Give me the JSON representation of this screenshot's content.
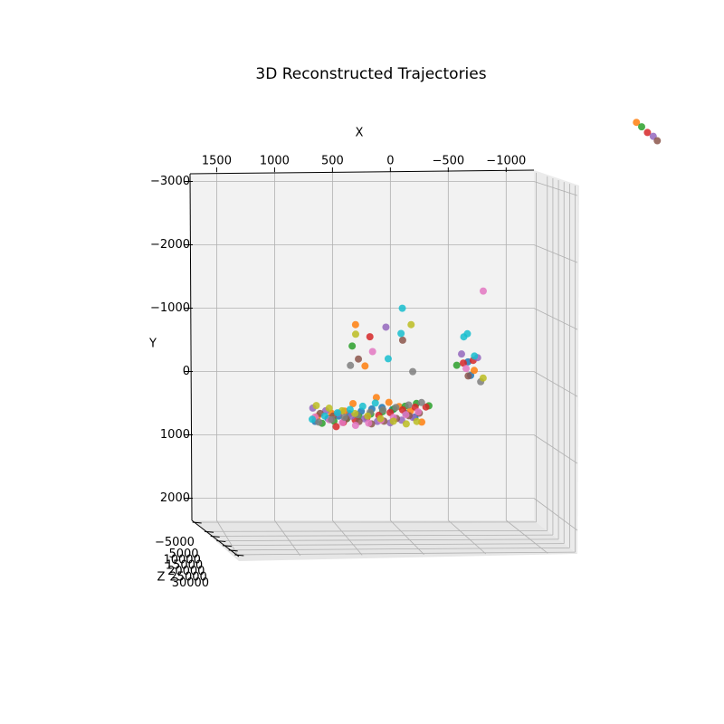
{
  "chart_data": {
    "type": "scatter3d",
    "title": "3D Reconstructed Trajectories",
    "xlabel": "X",
    "ylabel": "Y",
    "zlabel": "Z",
    "xlim": [
      1730,
      -1240
    ],
    "ylim": [
      -3150,
      2350
    ],
    "zlim": [
      -7000,
      32000
    ],
    "xticks": [
      1500,
      1000,
      500,
      0,
      {
        "value": -500,
        "label": "−500"
      },
      {
        "value": -1000,
        "label": "−1000"
      }
    ],
    "yticks": [
      {
        "value": -3000,
        "label": "−3000"
      },
      {
        "value": -2000,
        "label": "−2000"
      },
      {
        "value": -1000,
        "label": "−1000"
      },
      0,
      1000,
      2000
    ],
    "zticks": [
      {
        "value": -5000,
        "label": "−5000"
      },
      5000,
      10000,
      15000,
      20000,
      25000,
      30000
    ],
    "grid": true,
    "series": [
      {
        "color": "#1f77b4",
        "x": [
          720,
          610,
          520,
          430,
          330,
          240,
          150,
          60,
          -60,
          -140,
          -600,
          -620
        ],
        "y": [
          690,
          640,
          600,
          560,
          520,
          480,
          460,
          500,
          560,
          620,
          -250,
          -40
        ],
        "z": [
          0,
          200,
          400,
          600,
          800,
          1000,
          800,
          600,
          400,
          200,
          0,
          300
        ]
      },
      {
        "color": "#ff7f0e",
        "x": [
          700,
          580,
          470,
          400,
          380,
          300,
          200,
          90,
          0,
          -100,
          -200,
          -650,
          -2055
        ],
        "y": [
          610,
          560,
          520,
          400,
          -850,
          -200,
          300,
          380,
          450,
          520,
          700,
          -120,
          -4030
        ],
        "z": [
          100,
          300,
          500,
          700,
          900,
          1100,
          900,
          700,
          500,
          300,
          100,
          400,
          0
        ]
      },
      {
        "color": "#2ca02c",
        "x": [
          660,
          560,
          450,
          350,
          250,
          150,
          50,
          -50,
          -150,
          -260,
          400,
          -500,
          -2100
        ],
        "y": [
          720,
          680,
          640,
          600,
          560,
          520,
          480,
          440,
          400,
          440,
          -500,
          -200,
          -3960
        ],
        "z": [
          0,
          250,
          500,
          750,
          1000,
          1250,
          1000,
          750,
          500,
          250,
          0,
          300,
          0
        ]
      },
      {
        "color": "#d62728",
        "x": [
          540,
          480,
          380,
          280,
          180,
          80,
          -30,
          -140,
          -235,
          -560,
          250,
          -640,
          -2150
        ],
        "y": [
          770,
          700,
          660,
          620,
          580,
          540,
          500,
          460,
          460,
          -230,
          -650,
          -280,
          -3870
        ],
        "z": [
          200,
          400,
          600,
          800,
          1000,
          800,
          600,
          400,
          200,
          0,
          300,
          500,
          0
        ]
      },
      {
        "color": "#9467bd",
        "x": [
          740,
          630,
          520,
          410,
          300,
          190,
          80,
          -20,
          -120,
          -540,
          -680,
          110,
          -2200
        ],
        "y": [
          480,
          520,
          560,
          600,
          640,
          680,
          700,
          660,
          620,
          -380,
          -320,
          -800,
          -3810
        ],
        "z": [
          0,
          150,
          300,
          450,
          600,
          750,
          900,
          750,
          600,
          450,
          300,
          150,
          0
        ]
      },
      {
        "color": "#8c564b",
        "x": [
          680,
          570,
          460,
          350,
          240,
          130,
          20,
          -90,
          -180,
          -600,
          350,
          -30,
          -2235
        ],
        "y": [
          560,
          600,
          640,
          680,
          720,
          680,
          640,
          600,
          560,
          -30,
          -300,
          -600,
          -3740
        ],
        "z": [
          300,
          500,
          700,
          900,
          700,
          500,
          300,
          100,
          0,
          200,
          400,
          600,
          0
        ]
      },
      {
        "color": "#e377c2",
        "x": [
          720,
          600,
          490,
          380,
          270,
          160,
          50,
          -60,
          -170,
          -730,
          -580,
          230
        ],
        "y": [
          620,
          660,
          700,
          740,
          700,
          660,
          620,
          580,
          540,
          -1370,
          -150,
          -420
        ],
        "z": [
          0,
          300,
          600,
          900,
          1200,
          900,
          600,
          300,
          0,
          200,
          400,
          600
        ]
      },
      {
        "color": "#7f7f7f",
        "x": [
          690,
          580,
          470,
          360,
          250,
          140,
          30,
          -80,
          -190,
          -700,
          420,
          -120
        ],
        "y": [
          700,
          660,
          620,
          580,
          540,
          500,
          460,
          420,
          380,
          50,
          -200,
          -100
        ],
        "z": [
          100,
          200,
          300,
          400,
          500,
          600,
          700,
          800,
          900,
          1000,
          500,
          300
        ]
      },
      {
        "color": "#bcbd22",
        "x": [
          710,
          600,
          490,
          380,
          270,
          160,
          50,
          -60,
          -150,
          -100,
          380,
          -720
        ],
        "y": [
          440,
          480,
          520,
          560,
          600,
          640,
          680,
          720,
          680,
          -850,
          -700,
          -10
        ],
        "z": [
          0,
          100,
          200,
          300,
          400,
          500,
          600,
          700,
          800,
          900,
          1000,
          1100
        ]
      },
      {
        "color": "#17becf",
        "x": [
          750,
          640,
          530,
          420,
          310,
          200,
          90,
          -20,
          -30,
          -560,
          -590,
          -650
        ],
        "y": [
          650,
          600,
          550,
          500,
          450,
          400,
          -300,
          -700,
          -1100,
          -650,
          -700,
          -350
        ],
        "z": [
          500,
          400,
          300,
          200,
          100,
          0,
          100,
          200,
          300,
          400,
          500,
          600
        ]
      }
    ]
  }
}
